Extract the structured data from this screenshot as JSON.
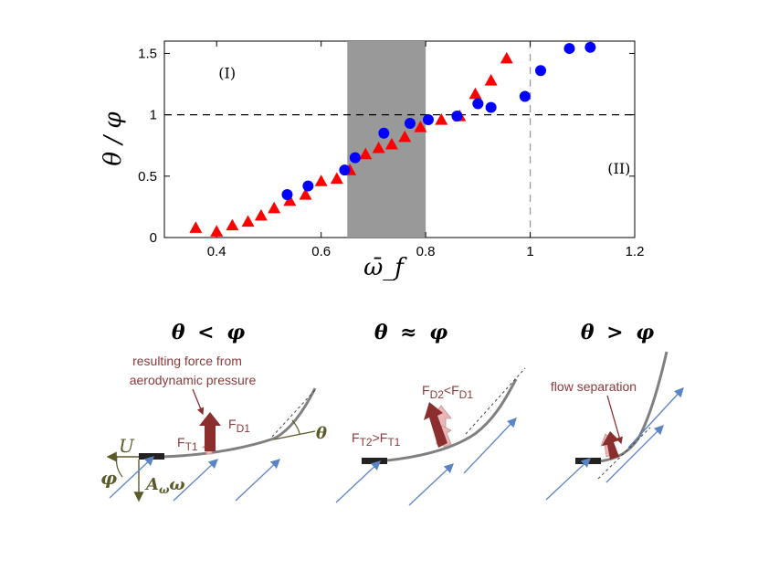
{
  "chart_data": {
    "type": "scatter",
    "xlabel": "ω̄_f",
    "ylabel": "θ / φ",
    "xlim": [
      0.3,
      1.2
    ],
    "ylim": [
      0,
      1.6
    ],
    "xticks": [
      "0.4",
      "0.6",
      "0.8",
      "1",
      "1.2"
    ],
    "xtick_values": [
      0.4,
      0.6,
      0.8,
      1.0,
      1.2
    ],
    "yticks": [
      "0",
      "0.5",
      "1",
      "1.5"
    ],
    "ytick_values": [
      0,
      0.5,
      1.0,
      1.5
    ],
    "shaded_region": [
      0.65,
      0.8
    ],
    "reference_hline": 1,
    "reference_vline": 1,
    "region_labels": [
      {
        "text": "(I)",
        "x": 0.42,
        "y": 1.3
      },
      {
        "text": "(II)",
        "x": 1.17,
        "y": 0.52
      }
    ],
    "series": [
      {
        "name": "triangles",
        "marker": "triangle",
        "color": "#ff0000",
        "x": [
          0.36,
          0.4,
          0.43,
          0.46,
          0.485,
          0.51,
          0.54,
          0.57,
          0.6,
          0.63,
          0.655,
          0.685,
          0.71,
          0.735,
          0.76,
          0.79,
          0.83,
          0.865,
          0.895,
          0.925,
          0.955
        ],
        "y": [
          0.08,
          0.05,
          0.1,
          0.13,
          0.18,
          0.24,
          0.3,
          0.35,
          0.46,
          0.48,
          0.55,
          0.68,
          0.73,
          0.76,
          0.82,
          0.9,
          0.96,
          0.99,
          1.17,
          1.28,
          1.46
        ]
      },
      {
        "name": "circles",
        "marker": "circle",
        "color": "#0000ff",
        "x": [
          0.535,
          0.575,
          0.645,
          0.665,
          0.72,
          0.77,
          0.805,
          0.86,
          0.9,
          0.925,
          0.99,
          1.02,
          1.075,
          1.115
        ],
        "y": [
          0.35,
          0.42,
          0.55,
          0.65,
          0.85,
          0.93,
          0.96,
          0.99,
          1.09,
          1.06,
          1.15,
          1.36,
          1.54,
          1.55
        ]
      }
    ]
  },
  "illustration": {
    "panel1": {
      "title_left": "θ",
      "title_op": "<",
      "title_right": "φ",
      "note_line1": "resulting force from",
      "note_line2": "aerodynamic pressure",
      "fd1_main": "F",
      "fd1_sub": "D1",
      "ft1_main": "F",
      "ft1_sub": "T1",
      "theta": "θ",
      "u": "U",
      "phi": "φ",
      "aw_main": "A",
      "aw_sub": "ω",
      "aw_tail": "ω"
    },
    "panel2": {
      "title_left": "θ",
      "title_op": "≈",
      "title_right": "φ",
      "fd_label_a": "F",
      "fd_sub_a": "D2",
      "fd_mid": "<",
      "fd_label_b": "F",
      "fd_sub_b": "D1",
      "ft_label_a": "F",
      "ft_sub_a": "T2",
      "ft_mid": ">",
      "ft_label_b": "F",
      "ft_sub_b": "T1"
    },
    "panel3": {
      "title_left": "θ",
      "title_op": ">",
      "title_right": "φ",
      "note": "flow separation"
    },
    "colors": {
      "force": "#8b2e2e",
      "force_light": "#e9b7b7",
      "flow": "#5b84c4",
      "filament": "#808080",
      "olive": "#5a5a2a"
    }
  }
}
